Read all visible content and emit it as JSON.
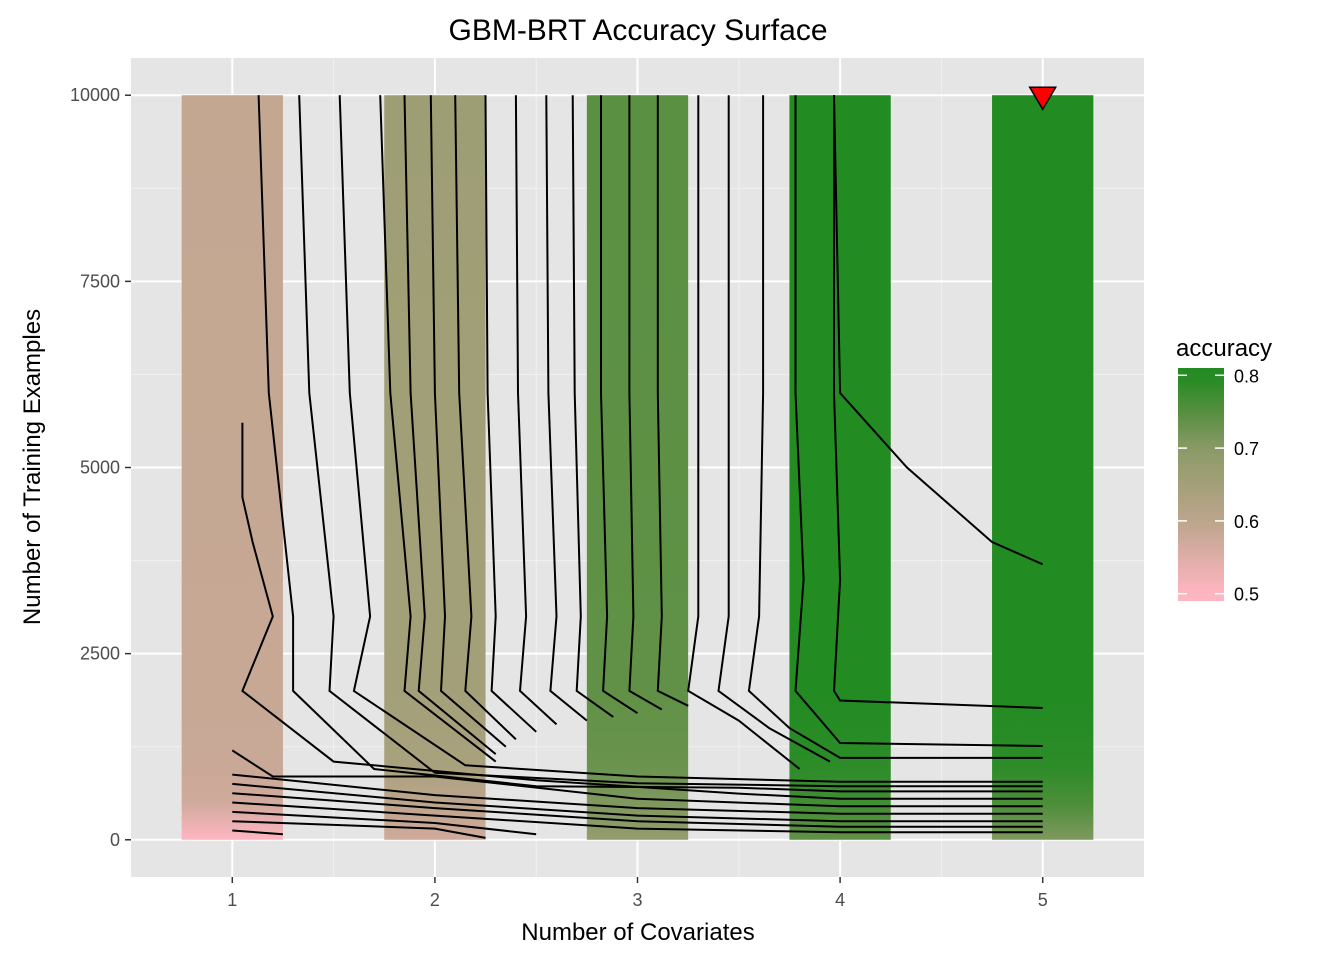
{
  "chart_data": {
    "type": "heatmap",
    "title": "GBM-BRT Accuracy Surface",
    "xlabel": "Number of Covariates",
    "ylabel": "Number of Training Examples",
    "xlim": [
      0.5,
      5.5
    ],
    "ylim": [
      -500,
      10500
    ],
    "x_ticks": [
      1,
      2,
      3,
      4,
      5
    ],
    "y_ticks": [
      0,
      2500,
      5000,
      7500,
      10000
    ],
    "x_tick_labels": [
      "1",
      "2",
      "3",
      "4",
      "5"
    ],
    "y_tick_labels": [
      "0",
      "2500",
      "5000",
      "7500",
      "10000"
    ],
    "grid": true,
    "legend_position": "right",
    "legend": {
      "title": "accuracy",
      "ticks": [
        0.5,
        0.6,
        0.7,
        0.8
      ],
      "tick_labels": [
        "0.5",
        "0.6",
        "0.7",
        "0.8"
      ],
      "range": [
        0.49,
        0.81
      ],
      "colors": [
        "#ffb6c1",
        "#bca58c",
        "#8a9a66",
        "#558f3e",
        "#228b22"
      ]
    },
    "tiles": [
      {
        "x": 1,
        "accuracy": [
          [
            0,
            0.5
          ],
          [
            500,
            0.57
          ],
          [
            1000,
            0.58
          ],
          [
            2000,
            0.585
          ],
          [
            10000,
            0.59
          ]
        ]
      },
      {
        "x": 2,
        "accuracy": [
          [
            0,
            0.57
          ],
          [
            500,
            0.6
          ],
          [
            1000,
            0.64
          ],
          [
            2000,
            0.65
          ],
          [
            10000,
            0.66
          ]
        ]
      },
      {
        "x": 3,
        "accuracy": [
          [
            0,
            0.68
          ],
          [
            500,
            0.71
          ],
          [
            1000,
            0.73
          ],
          [
            2000,
            0.74
          ],
          [
            10000,
            0.745
          ]
        ]
      },
      {
        "x": 4,
        "accuracy": [
          [
            0,
            0.74
          ],
          [
            500,
            0.77
          ],
          [
            1000,
            0.79
          ],
          [
            2000,
            0.8
          ],
          [
            10000,
            0.805
          ]
        ]
      },
      {
        "x": 5,
        "accuracy": [
          [
            0,
            0.71
          ],
          [
            500,
            0.76
          ],
          [
            1000,
            0.79
          ],
          [
            2000,
            0.8
          ],
          [
            10000,
            0.81
          ]
        ]
      }
    ],
    "contours": [
      [
        [
          1,
          125
        ],
        [
          1.25,
          75
        ]
      ],
      [
        [
          1,
          250
        ],
        [
          2,
          150
        ],
        [
          2.25,
          25
        ]
      ],
      [
        [
          1,
          375
        ],
        [
          2,
          225
        ],
        [
          2.5,
          75
        ]
      ],
      [
        [
          1,
          500
        ],
        [
          2,
          325
        ],
        [
          3,
          150
        ],
        [
          4,
          100
        ],
        [
          5,
          100
        ]
      ],
      [
        [
          1,
          625
        ],
        [
          2,
          425
        ],
        [
          3,
          250
        ],
        [
          4,
          175
        ],
        [
          5,
          175
        ]
      ],
      [
        [
          1,
          750
        ],
        [
          2,
          500
        ],
        [
          3,
          325
        ],
        [
          4,
          250
        ],
        [
          5,
          250
        ]
      ],
      [
        [
          1,
          875
        ],
        [
          2,
          600
        ],
        [
          3,
          425
        ],
        [
          4,
          350
        ],
        [
          5,
          350
        ]
      ],
      [
        [
          1,
          1200
        ],
        [
          1.2,
          850
        ],
        [
          2,
          850
        ],
        [
          3,
          550
        ],
        [
          4,
          450
        ],
        [
          5,
          450
        ]
      ],
      [
        [
          1.05,
          5600
        ],
        [
          1.05,
          4600
        ],
        [
          1.1,
          4000
        ],
        [
          1.2,
          3000
        ],
        [
          1.05,
          2000
        ],
        [
          1.5,
          1050
        ],
        [
          2.5,
          800
        ],
        [
          3.5,
          620
        ],
        [
          4,
          550
        ],
        [
          5,
          550
        ]
      ],
      [
        [
          1.13,
          10000
        ],
        [
          1.18,
          6000
        ],
        [
          1.3,
          3000
        ],
        [
          1.3,
          2000
        ],
        [
          1.7,
          950
        ],
        [
          2.5,
          720
        ],
        [
          3.5,
          700
        ],
        [
          4,
          650
        ],
        [
          5,
          650
        ]
      ],
      [
        [
          1.33,
          10000
        ],
        [
          1.38,
          6000
        ],
        [
          1.5,
          3000
        ],
        [
          1.48,
          2000
        ],
        [
          2,
          900
        ],
        [
          3,
          760
        ],
        [
          4,
          720
        ],
        [
          5,
          720
        ]
      ],
      [
        [
          1.53,
          10000
        ],
        [
          1.58,
          6000
        ],
        [
          1.68,
          3000
        ],
        [
          1.6,
          2000
        ],
        [
          2.15,
          1000
        ],
        [
          3,
          850
        ],
        [
          4,
          780
        ],
        [
          5,
          780
        ]
      ],
      [
        [
          1.73,
          10000
        ],
        [
          1.78,
          6000
        ],
        [
          1.88,
          3000
        ],
        [
          1.85,
          2000
        ],
        [
          2.3,
          1050
        ]
      ],
      [
        [
          1.85,
          10000
        ],
        [
          1.88,
          6000
        ],
        [
          1.95,
          3000
        ],
        [
          1.92,
          2000
        ],
        [
          2.3,
          1150
        ]
      ],
      [
        [
          1.98,
          10000
        ],
        [
          2.0,
          6000
        ],
        [
          2.05,
          3000
        ],
        [
          2.03,
          2000
        ],
        [
          2.35,
          1250
        ]
      ],
      [
        [
          2.1,
          10000
        ],
        [
          2.12,
          6000
        ],
        [
          2.18,
          3000
        ],
        [
          2.15,
          2000
        ],
        [
          2.4,
          1350
        ]
      ],
      [
        [
          2.25,
          10000
        ],
        [
          2.26,
          6000
        ],
        [
          2.3,
          3000
        ],
        [
          2.28,
          2000
        ],
        [
          2.5,
          1450
        ]
      ],
      [
        [
          2.4,
          10000
        ],
        [
          2.41,
          6000
        ],
        [
          2.45,
          3000
        ],
        [
          2.42,
          2000
        ],
        [
          2.6,
          1550
        ]
      ],
      [
        [
          2.55,
          10000
        ],
        [
          2.56,
          6000
        ],
        [
          2.6,
          3000
        ],
        [
          2.57,
          2000
        ],
        [
          2.75,
          1600
        ]
      ],
      [
        [
          2.68,
          10000
        ],
        [
          2.69,
          6000
        ],
        [
          2.72,
          3000
        ],
        [
          2.7,
          2000
        ],
        [
          2.88,
          1650
        ]
      ],
      [
        [
          2.82,
          10000
        ],
        [
          2.82,
          6000
        ],
        [
          2.85,
          3000
        ],
        [
          2.83,
          2000
        ],
        [
          3.0,
          1700
        ]
      ],
      [
        [
          2.96,
          10000
        ],
        [
          2.96,
          6000
        ],
        [
          2.98,
          3000
        ],
        [
          2.96,
          2000
        ],
        [
          3.12,
          1750
        ]
      ],
      [
        [
          3.1,
          10000
        ],
        [
          3.1,
          6000
        ],
        [
          3.12,
          3000
        ],
        [
          3.1,
          2000
        ],
        [
          3.25,
          1800
        ]
      ],
      [
        [
          3.3,
          10000
        ],
        [
          3.3,
          6000
        ],
        [
          3.3,
          3000
        ],
        [
          3.25,
          2000
        ],
        [
          3.5,
          1600
        ],
        [
          3.8,
          950
        ]
      ],
      [
        [
          3.45,
          10000
        ],
        [
          3.45,
          6000
        ],
        [
          3.45,
          3000
        ],
        [
          3.4,
          2000
        ],
        [
          3.65,
          1500
        ],
        [
          3.95,
          1050
        ]
      ],
      [
        [
          3.62,
          10000
        ],
        [
          3.62,
          6000
        ],
        [
          3.6,
          3000
        ],
        [
          3.55,
          2000
        ],
        [
          3.75,
          1500
        ],
        [
          4,
          1100
        ],
        [
          5,
          1100
        ]
      ],
      [
        [
          3.78,
          10000
        ],
        [
          3.78,
          6000
        ],
        [
          3.82,
          3500
        ],
        [
          3.78,
          2000
        ],
        [
          4,
          1300
        ],
        [
          5,
          1260
        ]
      ],
      [
        [
          3.97,
          10000
        ],
        [
          3.97,
          6000
        ],
        [
          4.0,
          3500
        ],
        [
          3.97,
          2000
        ],
        [
          4,
          1870
        ],
        [
          5,
          1770
        ]
      ],
      [
        [
          3.97,
          10000
        ],
        [
          4.0,
          6000
        ],
        [
          4.33,
          5000
        ],
        [
          4.75,
          4000
        ],
        [
          5,
          3700
        ]
      ]
    ],
    "marker": {
      "x": 5,
      "y": 10000,
      "shape": "triangle-down",
      "color": "#ff0000"
    }
  }
}
